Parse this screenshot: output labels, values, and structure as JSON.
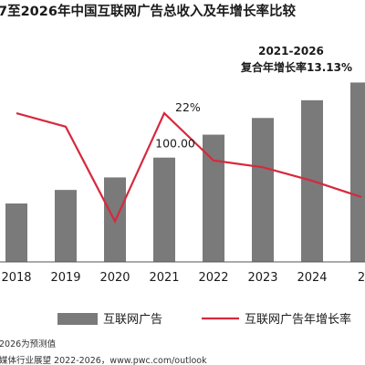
{
  "chart_data": {
    "type": "bar",
    "title": "7至2026年中国互联网广告总收入及年增长率比较",
    "categories": [
      "2018",
      "2019",
      "2020",
      "2021",
      "2022",
      "2023",
      "2024",
      "2"
    ],
    "series": [
      {
        "name": "互联网广告",
        "kind": "bar",
        "color": "#7a7a7a",
        "values": [
          56,
          69,
          81,
          100,
          122,
          138,
          155,
          172
        ]
      },
      {
        "name": "互联网广告年增长率",
        "kind": "line",
        "color": "#d6293e",
        "values": [
          22,
          20,
          6,
          22,
          15,
          14,
          12,
          9.6
        ]
      }
    ],
    "data_labels": [
      {
        "series": 1,
        "index": 3,
        "text": "22%"
      },
      {
        "series": 0,
        "index": 3,
        "text": "100.00"
      }
    ],
    "annotation": {
      "line1": "2021-2026",
      "line2": "复合年增长率13.13%"
    },
    "ylim_bar": [
      0,
      175
    ],
    "ylim_line": [
      0,
      27
    ],
    "legend_position": "bottom",
    "grid": false
  },
  "notes": {
    "forecast": "2026为预测值",
    "source": "媒体行业展望 2022-2026，www.pwc.com/outlook"
  }
}
